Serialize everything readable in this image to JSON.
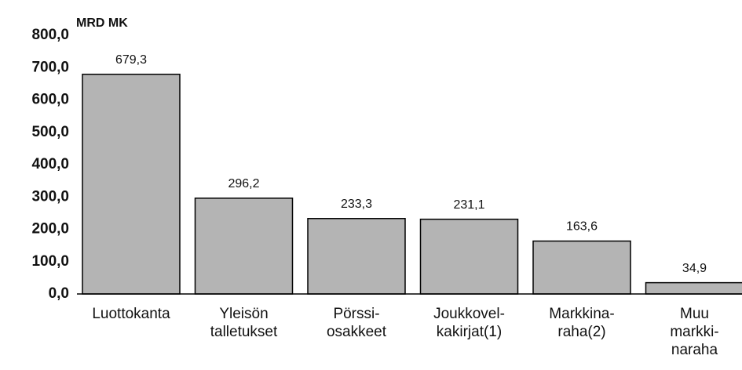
{
  "chart_data": {
    "type": "bar",
    "y_axis_label": "MRD MK",
    "categories": [
      "Luottokanta",
      "Yleisön\ntalletukset",
      "Pörssi-\nosakkeet",
      "Joukkovel-\nkakirjat(1)",
      "Markkina-\nraha(2)",
      "Muu\nmarkki-\nnaraha"
    ],
    "values": [
      679.3,
      296.2,
      233.3,
      231.1,
      163.6,
      34.9
    ],
    "value_labels": [
      "679,3",
      "296,2",
      "233,3",
      "231,1",
      "163,6",
      "34,9"
    ],
    "color": "#b4b4b4",
    "ylim": [
      0,
      800
    ],
    "yticks": [
      {
        "value": 0,
        "label": "0,0"
      },
      {
        "value": 100,
        "label": "100,0"
      },
      {
        "value": 200,
        "label": "200,0"
      },
      {
        "value": 300,
        "label": "300,0"
      },
      {
        "value": 400,
        "label": "400,0"
      },
      {
        "value": 500,
        "label": "500,0"
      },
      {
        "value": 600,
        "label": "600,0"
      },
      {
        "value": 700,
        "label": "700,0"
      },
      {
        "value": 800,
        "label": "800,0"
      }
    ],
    "grid": false
  }
}
